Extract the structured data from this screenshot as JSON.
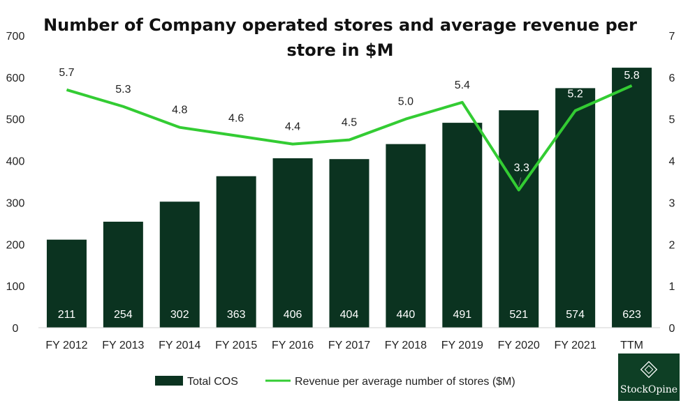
{
  "chart_data": {
    "type": "bar",
    "title_line1": "Number of Company operated stores and average revenue per",
    "title_line2": "store in $M",
    "categories": [
      "FY 2012",
      "FY 2013",
      "FY 2014",
      "FY 2015",
      "FY 2016",
      "FY 2017",
      "FY 2018",
      "FY 2019",
      "FY 2020",
      "FY 2021",
      "TTM"
    ],
    "series": [
      {
        "name": "Total COS",
        "type": "bar",
        "axis": "left",
        "color": "#0b3320",
        "values": [
          211,
          254,
          302,
          363,
          406,
          404,
          440,
          491,
          521,
          574,
          623
        ]
      },
      {
        "name": "Revenue per average number of stores ($M)",
        "type": "line",
        "axis": "right",
        "color": "#33cc33",
        "values": [
          5.7,
          5.3,
          4.8,
          4.6,
          4.4,
          4.5,
          5.0,
          5.4,
          3.3,
          5.2,
          5.8
        ]
      }
    ],
    "ylim_left": [
      0,
      700
    ],
    "yticks_left": [
      0,
      100,
      200,
      300,
      400,
      500,
      600,
      700
    ],
    "ylim_right": [
      0,
      7
    ],
    "yticks_right": [
      0,
      1,
      2,
      3,
      4,
      5,
      6,
      7
    ],
    "grid": false,
    "legend_position": "bottom"
  },
  "logo": {
    "text": "StockOpine"
  }
}
